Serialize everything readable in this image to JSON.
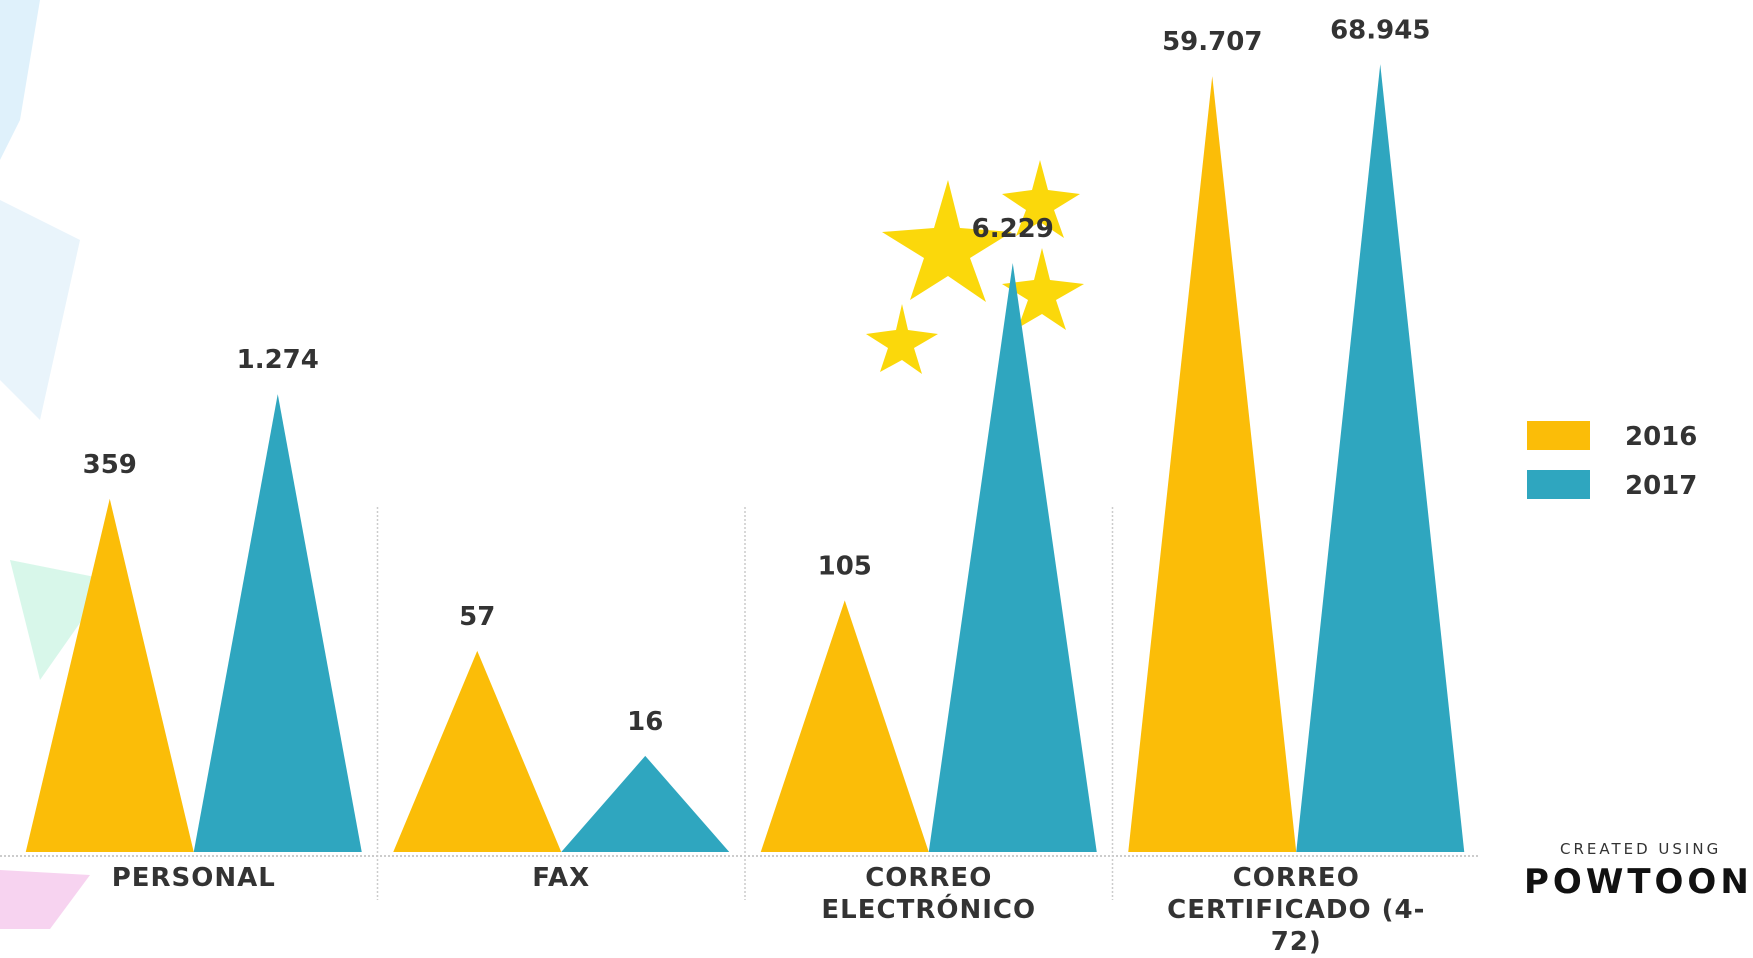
{
  "chart_data": {
    "type": "triangle-bar",
    "categories": [
      "PERSONAL",
      "FAX",
      "CORREO ELECTRÓNICO",
      "CORREO CERTIFICADO (4-72)"
    ],
    "series": [
      {
        "name": "2016",
        "color": "#fbbd08",
        "values": [
          359,
          57,
          105,
          59707
        ],
        "value_labels": [
          "359",
          "57",
          "105",
          "59.707"
        ]
      },
      {
        "name": "2017",
        "color": "#2fa6bf",
        "values": [
          1274,
          16,
          6229,
          68945
        ],
        "value_labels": [
          "1.274",
          "16",
          "6.229",
          "68.945"
        ]
      }
    ],
    "log_scale": true,
    "ylim": [
      5,
      80000
    ],
    "legend": "right"
  },
  "watermark": {
    "line1": "CREATED USING",
    "line2": "POWTOON"
  }
}
